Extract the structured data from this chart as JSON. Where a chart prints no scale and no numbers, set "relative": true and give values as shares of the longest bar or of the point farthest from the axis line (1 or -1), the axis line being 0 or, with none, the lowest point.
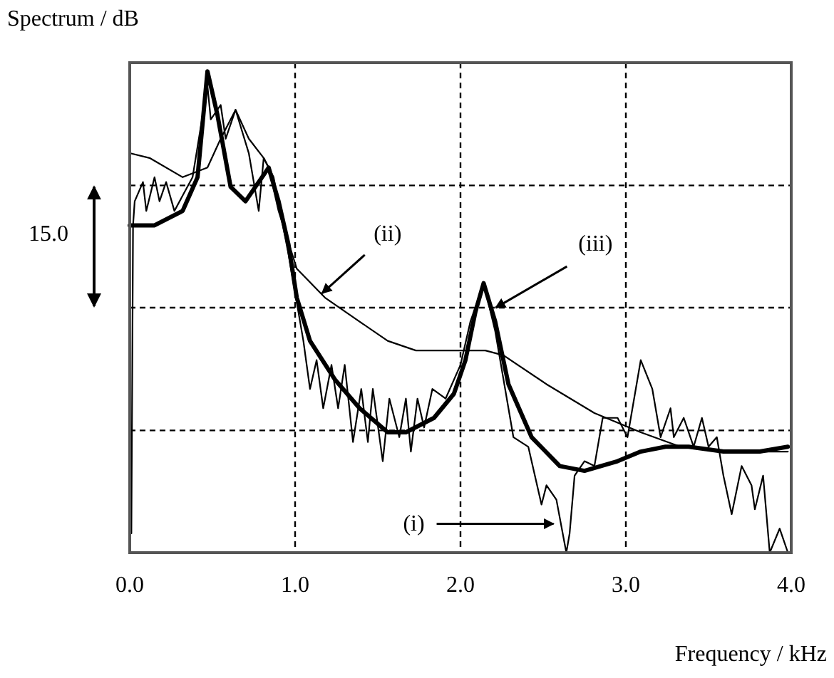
{
  "chart_data": {
    "type": "line",
    "relative": true,
    "xlabel": "Frequency / kHz",
    "ylabel": "Spectrum / dB",
    "xlim": [
      0,
      4
    ],
    "xticks": [
      {
        "value": 0,
        "label": "0.0"
      },
      {
        "value": 1,
        "label": "1.0"
      },
      {
        "value": 2,
        "label": "2.0"
      },
      {
        "value": 3,
        "label": "3.0"
      },
      {
        "value": 4,
        "label": "4.0"
      }
    ],
    "grid": "x",
    "marker": "none",
    "ref_lines": [
      {
        "axis": "y",
        "value": 0.254,
        "line_style": "dashed",
        "color": "#000000"
      },
      {
        "axis": "y",
        "value": 0.509,
        "line_style": "dashed",
        "color": "#000000"
      },
      {
        "axis": "y",
        "value": 0.763,
        "line_style": "dashed",
        "color": "#000000"
      }
    ],
    "annotations": [
      "15.0",
      {
        "text": "(i)",
        "x": 2.58,
        "y": 0.06
      },
      {
        "text": "(ii)",
        "x": 1.18,
        "y": 0.53
      },
      {
        "text": "(iii)",
        "x": 2.23,
        "y": 0.5
      }
    ],
    "series": [
      {
        "color": "#000000",
        "line_style": "solid",
        "x": [
          0.01,
          0.02,
          0.03,
          0.08,
          0.1,
          0.15,
          0.18,
          0.22,
          0.27,
          0.38,
          0.47,
          0.49,
          0.55,
          0.58,
          0.64,
          0.72,
          0.78,
          0.81,
          0.87,
          0.96,
          1.05,
          1.09,
          1.13,
          1.17,
          1.22,
          1.26,
          1.3,
          1.35,
          1.4,
          1.44,
          1.47,
          1.53,
          1.57,
          1.63,
          1.67,
          1.7,
          1.74,
          1.78,
          1.83,
          1.91,
          2.0,
          2.06,
          2.14,
          2.21,
          2.32,
          2.41,
          2.49,
          2.52,
          2.58,
          2.64,
          2.66,
          2.69,
          2.75,
          2.81,
          2.86,
          2.95,
          3.01,
          3.09,
          3.16,
          3.21,
          3.27,
          3.29,
          3.35,
          3.41,
          3.46,
          3.5,
          3.55,
          3.59,
          3.64,
          3.7,
          3.76,
          3.78,
          3.83,
          3.87,
          3.93,
          3.98
        ],
        "values": [
          0.04,
          0.68,
          0.73,
          0.77,
          0.71,
          0.78,
          0.73,
          0.77,
          0.71,
          0.78,
          0.97,
          0.9,
          0.93,
          0.86,
          0.92,
          0.83,
          0.71,
          0.82,
          0.78,
          0.62,
          0.44,
          0.34,
          0.4,
          0.3,
          0.39,
          0.3,
          0.39,
          0.23,
          0.34,
          0.23,
          0.34,
          0.19,
          0.32,
          0.24,
          0.32,
          0.21,
          0.32,
          0.26,
          0.34,
          0.32,
          0.39,
          0.48,
          0.56,
          0.46,
          0.24,
          0.22,
          0.1,
          0.14,
          0.11,
          0.0,
          0.04,
          0.16,
          0.19,
          0.18,
          0.28,
          0.28,
          0.24,
          0.4,
          0.34,
          0.24,
          0.3,
          0.24,
          0.28,
          0.22,
          0.28,
          0.22,
          0.24,
          0.16,
          0.08,
          0.18,
          0.14,
          0.09,
          0.16,
          0.0,
          0.05,
          0.0
        ]
      },
      {
        "color": "#000000",
        "line_style": "solid",
        "x": [
          0.0,
          0.12,
          0.32,
          0.47,
          0.55,
          0.64,
          0.72,
          0.81,
          0.84,
          0.9,
          1.01,
          1.18,
          1.39,
          1.56,
          1.73,
          2.02,
          2.15,
          2.26,
          2.52,
          2.81,
          3.09,
          3.33,
          3.59,
          3.98
        ],
        "values": [
          0.83,
          0.82,
          0.78,
          0.8,
          0.86,
          0.92,
          0.86,
          0.82,
          0.8,
          0.71,
          0.59,
          0.53,
          0.48,
          0.44,
          0.42,
          0.42,
          0.42,
          0.41,
          0.35,
          0.29,
          0.25,
          0.22,
          0.21,
          0.21
        ]
      },
      {
        "color": "#000000",
        "line_style": "solid",
        "x": [
          0.0,
          0.15,
          0.32,
          0.41,
          0.47,
          0.53,
          0.61,
          0.7,
          0.78,
          0.84,
          0.9,
          0.96,
          1.01,
          1.09,
          1.24,
          1.39,
          1.56,
          1.67,
          1.84,
          1.96,
          2.03,
          2.09,
          2.14,
          2.21,
          2.29,
          2.43,
          2.6,
          2.75,
          2.95,
          3.09,
          3.24,
          3.38,
          3.59,
          3.81,
          3.98
        ],
        "values": [
          0.68,
          0.68,
          0.71,
          0.78,
          1.0,
          0.91,
          0.76,
          0.73,
          0.77,
          0.8,
          0.73,
          0.64,
          0.53,
          0.44,
          0.36,
          0.3,
          0.25,
          0.25,
          0.28,
          0.33,
          0.4,
          0.5,
          0.56,
          0.48,
          0.35,
          0.24,
          0.18,
          0.17,
          0.19,
          0.21,
          0.22,
          0.22,
          0.21,
          0.21,
          0.22
        ]
      }
    ]
  }
}
